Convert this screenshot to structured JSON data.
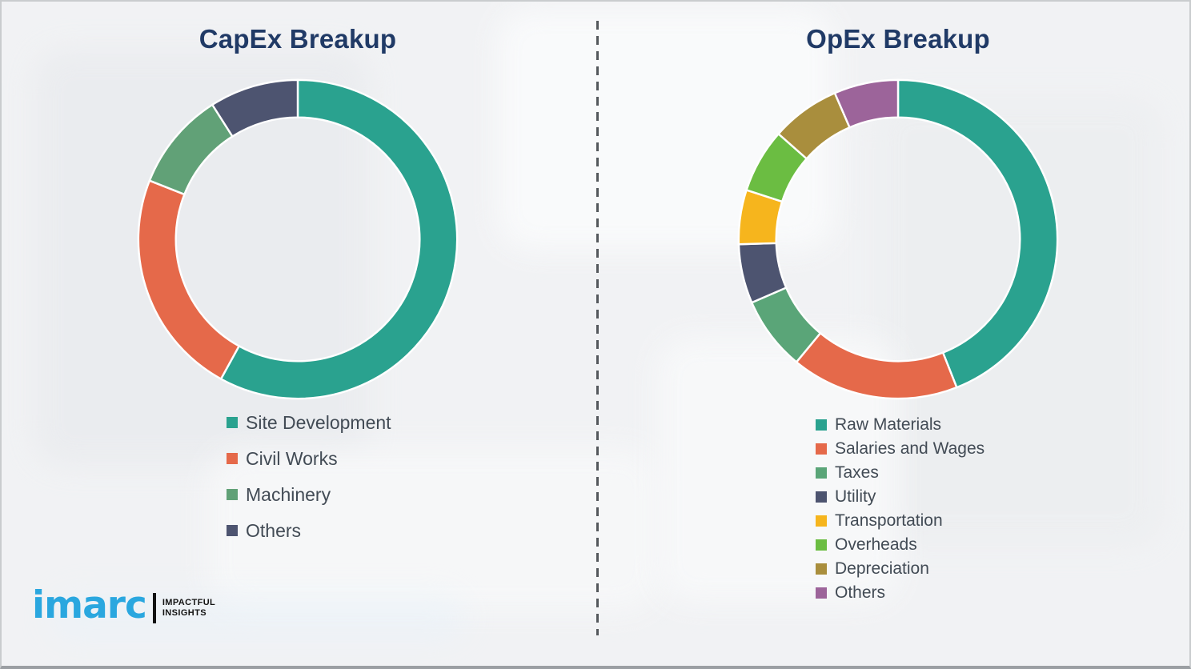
{
  "style": {
    "background_color": "#f1f2f4",
    "title_color": "#203a66",
    "legend_text_color": "#424b55",
    "divider_color": "#54585c",
    "logo_color": "#2aa7df"
  },
  "chart_data": [
    {
      "type": "pie",
      "subtype": "donut",
      "title": "CapEx Breakup",
      "labels": [
        "Site Development",
        "Civil Works",
        "Machinery",
        "Others"
      ],
      "values": [
        58,
        23,
        10,
        9
      ],
      "values_unit": "percent (estimated from arc angles; no numeric labels shown)",
      "colors": [
        "#2aa28f",
        "#e5694a",
        "#61a177",
        "#4d5470"
      ],
      "start_angle_deg": 0,
      "direction": "clockwise",
      "legend_position": "below-left"
    },
    {
      "type": "pie",
      "subtype": "donut",
      "title": "OpEx Breakup",
      "labels": [
        "Raw Materials",
        "Salaries and Wages",
        "Taxes",
        "Utility",
        "Transportation",
        "Overheads",
        "Depreciation",
        "Others"
      ],
      "values": [
        44,
        17,
        7.5,
        6,
        5.5,
        6.5,
        7,
        6.5
      ],
      "values_unit": "percent (estimated from arc angles; no numeric labels shown)",
      "colors": [
        "#2aa28f",
        "#e5694a",
        "#5aa578",
        "#4d5470",
        "#f6b51d",
        "#6bbd42",
        "#a98e3d",
        "#9c649a"
      ],
      "start_angle_deg": 0,
      "direction": "clockwise",
      "legend_position": "below-left"
    }
  ],
  "branding": {
    "logo_text": "imarc",
    "tagline_line1": "IMPACTFUL",
    "tagline_line2": "INSIGHTS"
  }
}
